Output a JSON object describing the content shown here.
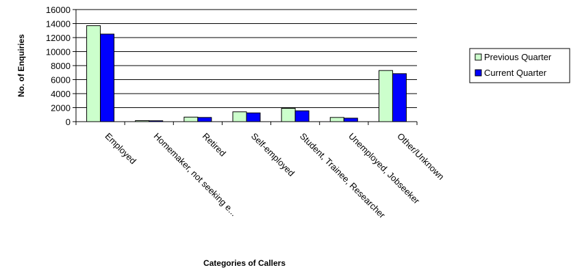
{
  "chart_data": {
    "type": "bar",
    "title": "",
    "xlabel": "Categories of Callers",
    "ylabel": "No. of Enquiries",
    "ylim": [
      0,
      16000
    ],
    "yticks": [
      0,
      2000,
      4000,
      6000,
      8000,
      10000,
      12000,
      14000,
      16000
    ],
    "grid": true,
    "legend_position": "right",
    "categories": [
      "Employed",
      "Homemaker, not seeking e...",
      "Retired",
      "Self-employed",
      "Student, Trainee, Researcher",
      "Unemployed, Jobseeker",
      "Other/Unknown"
    ],
    "series": [
      {
        "name": "Previous Quarter",
        "color": "#ccffcc",
        "values": [
          13700,
          150,
          650,
          1400,
          1900,
          600,
          7300
        ]
      },
      {
        "name": "Current Quarter",
        "color": "#0000ff",
        "values": [
          12500,
          130,
          600,
          1250,
          1550,
          500,
          6850
        ]
      }
    ]
  }
}
